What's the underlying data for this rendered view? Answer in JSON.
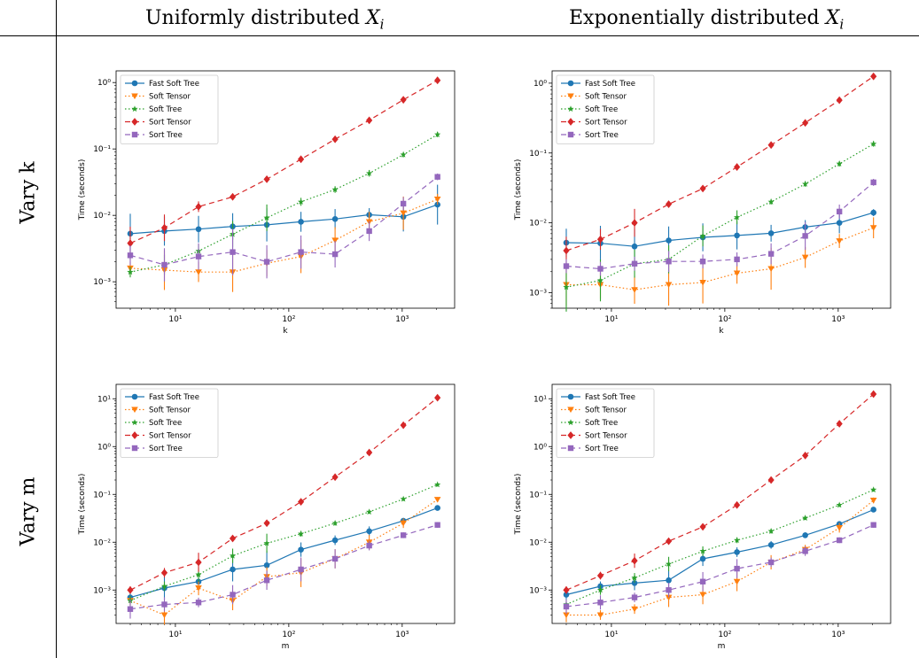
{
  "header": {
    "col1_prefix": "Uniformly distributed ",
    "col2_prefix": "Exponentially distributed ",
    "var_symbol": "X",
    "var_subscript": "i",
    "row1": "Vary k",
    "row2": "Vary m"
  },
  "series_colors": [
    "#1f77b4",
    "#ff7f0e",
    "#2ca02c",
    "#d62728",
    "#9467bd"
  ],
  "chart_data": [
    {
      "type": "line",
      "panel": "uniform-vary-k",
      "xlabel": "k",
      "ylabel": "Time (seconds)",
      "xscale": "log",
      "yscale": "log",
      "xlim": [
        3,
        2900
      ],
      "ylim": [
        0.0004,
        1.5
      ],
      "xticks": [
        {
          "value": 10,
          "label": "10¹"
        },
        {
          "value": 100,
          "label": "10²"
        },
        {
          "value": 1000,
          "label": "10³"
        }
      ],
      "yticks": [
        {
          "value": 0.001,
          "label": "10⁻³"
        },
        {
          "value": 0.01,
          "label": "10⁻²"
        },
        {
          "value": 0.1,
          "label": "10⁻¹"
        },
        {
          "value": 1,
          "label": "10⁰"
        }
      ],
      "legend": "top-left",
      "x": [
        4,
        8,
        16,
        32,
        64,
        128,
        256,
        512,
        1024,
        2048
      ],
      "series": [
        {
          "name": "Fast Soft Tree",
          "marker": "circle",
          "dash": "solid",
          "values": [
            0.0053,
            0.0058,
            0.0062,
            0.0068,
            0.0072,
            0.008,
            0.0088,
            0.0102,
            0.0095,
            0.0145
          ],
          "err": [
            0.3,
            0.22,
            0.2,
            0.2,
            0.25,
            0.15,
            0.15,
            0.1,
            0.22,
            0.3
          ]
        },
        {
          "name": "Soft Tensor",
          "marker": "triangle",
          "dash": "dot",
          "values": [
            0.0016,
            0.0015,
            0.0014,
            0.0014,
            0.0019,
            0.0024,
            0.0042,
            0.008,
            0.0108,
            0.0175
          ],
          "err": [
            0.1,
            0.3,
            0.15,
            0.3,
            0.2,
            0.25,
            0.2,
            0.15,
            0.25,
            0.08
          ]
        },
        {
          "name": "Soft Tree",
          "marker": "star",
          "dash": "dot",
          "values": [
            0.0014,
            0.0018,
            0.0029,
            0.0052,
            0.0092,
            0.016,
            0.0245,
            0.043,
            0.082,
            0.165
          ],
          "err": [
            0.08,
            0.15,
            0.1,
            0.2,
            0.2,
            0.06,
            0.05,
            0.05,
            0.04,
            0.04
          ]
        },
        {
          "name": "Sort Tensor",
          "marker": "diamond",
          "dash": "dash",
          "values": [
            0.0038,
            0.0065,
            0.0135,
            0.019,
            0.035,
            0.07,
            0.14,
            0.27,
            0.55,
            1.08
          ],
          "err": [
            0.25,
            0.2,
            0.08,
            0.05,
            0.04,
            0.04,
            0.04,
            0.03,
            0.03,
            0.03
          ]
        },
        {
          "name": "Sort Tree",
          "marker": "square",
          "dash": "dash",
          "values": [
            0.0025,
            0.0018,
            0.0024,
            0.0028,
            0.002,
            0.0028,
            0.0026,
            0.0058,
            0.015,
            0.038
          ],
          "err": [
            0.15,
            0.25,
            0.2,
            0.35,
            0.25,
            0.25,
            0.2,
            0.15,
            0.1,
            0.05
          ]
        }
      ]
    },
    {
      "type": "line",
      "panel": "exponential-vary-k",
      "xlabel": "k",
      "ylabel": "Time (seconds)",
      "xscale": "log",
      "yscale": "log",
      "xlim": [
        3,
        2900
      ],
      "ylim": [
        0.0006,
        1.5
      ],
      "xticks": [
        {
          "value": 10,
          "label": "10¹"
        },
        {
          "value": 100,
          "label": "10²"
        },
        {
          "value": 1000,
          "label": "10³"
        }
      ],
      "yticks": [
        {
          "value": 0.001,
          "label": "10⁻³"
        },
        {
          "value": 0.01,
          "label": "10⁻²"
        },
        {
          "value": 0.1,
          "label": "10⁻¹"
        },
        {
          "value": 1,
          "label": "10⁰"
        }
      ],
      "legend": "top-left",
      "x": [
        4,
        8,
        16,
        32,
        64,
        128,
        256,
        512,
        1024,
        2048
      ],
      "series": [
        {
          "name": "Fast Soft Tree",
          "marker": "circle",
          "dash": "solid",
          "values": [
            0.0052,
            0.0051,
            0.0046,
            0.0056,
            0.0062,
            0.0066,
            0.0071,
            0.0087,
            0.01,
            0.014
          ],
          "err": [
            0.2,
            0.25,
            0.25,
            0.2,
            0.2,
            0.2,
            0.12,
            0.1,
            0.15,
            0.05
          ]
        },
        {
          "name": "Soft Tensor",
          "marker": "triangle",
          "dash": "dot",
          "values": [
            0.0013,
            0.0013,
            0.0011,
            0.0013,
            0.0014,
            0.0019,
            0.0022,
            0.0032,
            0.0055,
            0.0085
          ],
          "err": [
            0.3,
            0.2,
            0.2,
            0.3,
            0.3,
            0.15,
            0.3,
            0.15,
            0.1,
            0.15
          ]
        },
        {
          "name": "Soft Tree",
          "marker": "star",
          "dash": "dot",
          "values": [
            0.0012,
            0.0015,
            0.0026,
            0.003,
            0.0065,
            0.012,
            0.02,
            0.036,
            0.07,
            0.135
          ],
          "err": [
            0.35,
            0.3,
            0.2,
            0.2,
            0.15,
            0.1,
            0.04,
            0.04,
            0.04,
            0.04
          ]
        },
        {
          "name": "Sort Tensor",
          "marker": "diamond",
          "dash": "dash",
          "values": [
            0.004,
            0.0058,
            0.01,
            0.0185,
            0.031,
            0.063,
            0.13,
            0.27,
            0.57,
            1.25
          ],
          "err": [
            0.2,
            0.15,
            0.2,
            0.04,
            0.04,
            0.04,
            0.04,
            0.03,
            0.03,
            0.03
          ]
        },
        {
          "name": "Sort Tree",
          "marker": "square",
          "dash": "dash",
          "values": [
            0.0024,
            0.0022,
            0.0026,
            0.0028,
            0.0028,
            0.003,
            0.0036,
            0.0065,
            0.0145,
            0.038
          ],
          "err": [
            0.1,
            0.1,
            0.1,
            0.15,
            0.1,
            0.1,
            0.15,
            0.2,
            0.1,
            0.05
          ]
        }
      ]
    },
    {
      "type": "line",
      "panel": "uniform-vary-m",
      "xlabel": "m",
      "ylabel": "Time (seconds)",
      "xscale": "log",
      "yscale": "log",
      "xlim": [
        3,
        2900
      ],
      "ylim": [
        0.0002,
        20
      ],
      "xticks": [
        {
          "value": 10,
          "label": "10¹"
        },
        {
          "value": 100,
          "label": "10²"
        },
        {
          "value": 1000,
          "label": "10³"
        }
      ],
      "yticks": [
        {
          "value": 0.001,
          "label": "10⁻³"
        },
        {
          "value": 0.01,
          "label": "10⁻²"
        },
        {
          "value": 0.1,
          "label": "10⁻¹"
        },
        {
          "value": 1,
          "label": "10⁰"
        },
        {
          "value": 10,
          "label": "10¹"
        }
      ],
      "legend": "top-left",
      "x": [
        4,
        8,
        16,
        32,
        64,
        128,
        256,
        512,
        1024,
        2048
      ],
      "series": [
        {
          "name": "Fast Soft Tree",
          "marker": "circle",
          "dash": "solid",
          "values": [
            0.0007,
            0.0011,
            0.0015,
            0.0027,
            0.0033,
            0.007,
            0.011,
            0.017,
            0.028,
            0.052
          ],
          "err": [
            0.1,
            0.25,
            0.15,
            0.25,
            0.3,
            0.15,
            0.1,
            0.1,
            0.06,
            0.05
          ]
        },
        {
          "name": "Soft Tensor",
          "marker": "triangle",
          "dash": "dot",
          "values": [
            0.0006,
            0.0003,
            0.0011,
            0.0006,
            0.0019,
            0.0023,
            0.0045,
            0.01,
            0.025,
            0.078
          ],
          "err": [
            0.1,
            0.2,
            0.15,
            0.2,
            0.2,
            0.3,
            0.2,
            0.15,
            0.1,
            0.05
          ]
        },
        {
          "name": "Soft Tree",
          "marker": "star",
          "dash": "dot",
          "values": [
            0.0006,
            0.0012,
            0.0021,
            0.0052,
            0.0095,
            0.015,
            0.025,
            0.043,
            0.08,
            0.16
          ],
          "err": [
            0.1,
            0.1,
            0.15,
            0.15,
            0.2,
            0.06,
            0.05,
            0.04,
            0.04,
            0.04
          ]
        },
        {
          "name": "Sort Tensor",
          "marker": "diamond",
          "dash": "dash",
          "values": [
            0.001,
            0.0023,
            0.0038,
            0.012,
            0.025,
            0.07,
            0.23,
            0.75,
            2.8,
            10.5
          ],
          "err": [
            0.08,
            0.1,
            0.2,
            0.05,
            0.05,
            0.04,
            0.03,
            0.03,
            0.03,
            0.03
          ]
        },
        {
          "name": "Sort Tree",
          "marker": "square",
          "dash": "dash",
          "values": [
            0.0004,
            0.0005,
            0.00055,
            0.0008,
            0.0016,
            0.0027,
            0.0045,
            0.0085,
            0.014,
            0.023
          ],
          "err": [
            0.2,
            0.15,
            0.1,
            0.2,
            0.2,
            0.25,
            0.2,
            0.1,
            0.06,
            0.06
          ]
        }
      ]
    },
    {
      "type": "line",
      "panel": "exponential-vary-m",
      "xlabel": "m",
      "ylabel": "Time (seconds)",
      "xscale": "log",
      "yscale": "log",
      "xlim": [
        3,
        2900
      ],
      "ylim": [
        0.0002,
        20
      ],
      "xticks": [
        {
          "value": 10,
          "label": "10¹"
        },
        {
          "value": 100,
          "label": "10²"
        },
        {
          "value": 1000,
          "label": "10³"
        }
      ],
      "yticks": [
        {
          "value": 0.001,
          "label": "10⁻³"
        },
        {
          "value": 0.01,
          "label": "10⁻²"
        },
        {
          "value": 0.1,
          "label": "10⁻¹"
        },
        {
          "value": 1,
          "label": "10⁰"
        },
        {
          "value": 10,
          "label": "10¹"
        }
      ],
      "legend": "top-left",
      "x": [
        4,
        8,
        16,
        32,
        64,
        128,
        256,
        512,
        1024,
        2048
      ],
      "series": [
        {
          "name": "Fast Soft Tree",
          "marker": "circle",
          "dash": "solid",
          "values": [
            0.0008,
            0.0012,
            0.0014,
            0.0016,
            0.0045,
            0.0062,
            0.0088,
            0.014,
            0.024,
            0.048
          ],
          "err": [
            0.1,
            0.1,
            0.15,
            0.2,
            0.15,
            0.1,
            0.08,
            0.06,
            0.05,
            0.05
          ]
        },
        {
          "name": "Soft Tensor",
          "marker": "triangle",
          "dash": "dot",
          "values": [
            0.0003,
            0.0003,
            0.0004,
            0.0007,
            0.0008,
            0.0015,
            0.0038,
            0.007,
            0.02,
            0.075
          ],
          "err": [
            0.15,
            0.1,
            0.1,
            0.2,
            0.2,
            0.2,
            0.15,
            0.1,
            0.1,
            0.06
          ]
        },
        {
          "name": "Soft Tree",
          "marker": "star",
          "dash": "dot",
          "values": [
            0.0005,
            0.001,
            0.0018,
            0.0035,
            0.0065,
            0.011,
            0.017,
            0.032,
            0.06,
            0.125
          ],
          "err": [
            0.1,
            0.1,
            0.1,
            0.15,
            0.1,
            0.06,
            0.05,
            0.04,
            0.04,
            0.04
          ]
        },
        {
          "name": "Sort Tensor",
          "marker": "diamond",
          "dash": "dash",
          "values": [
            0.001,
            0.002,
            0.0041,
            0.0105,
            0.021,
            0.06,
            0.2,
            0.65,
            3.0,
            12.5
          ],
          "err": [
            0.08,
            0.08,
            0.15,
            0.05,
            0.05,
            0.04,
            0.03,
            0.03,
            0.03,
            0.03
          ]
        },
        {
          "name": "Sort Tree",
          "marker": "square",
          "dash": "dash",
          "values": [
            0.00045,
            0.00055,
            0.0007,
            0.001,
            0.0015,
            0.0028,
            0.0038,
            0.0065,
            0.011,
            0.023
          ],
          "err": [
            0.15,
            0.15,
            0.1,
            0.15,
            0.2,
            0.2,
            0.1,
            0.1,
            0.06,
            0.06
          ]
        }
      ]
    }
  ]
}
